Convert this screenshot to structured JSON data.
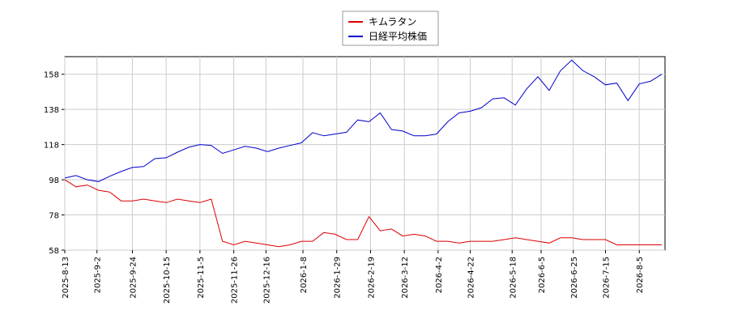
{
  "chart_data": {
    "type": "line",
    "x": [
      "2025-08-13",
      "2025-08-20",
      "2025-08-27",
      "2025-09-03",
      "2025-09-10",
      "2025-09-17",
      "2025-09-24",
      "2025-10-01",
      "2025-10-08",
      "2025-10-15",
      "2025-10-22",
      "2025-10-29",
      "2025-11-05",
      "2025-11-12",
      "2025-11-19",
      "2025-11-26",
      "2025-12-03",
      "2025-12-10",
      "2025-12-17",
      "2025-12-24",
      "2025-12-31",
      "2026-01-07",
      "2026-01-14",
      "2026-01-21",
      "2026-01-28",
      "2026-02-04",
      "2026-02-11",
      "2026-02-18",
      "2026-02-25",
      "2026-03-04",
      "2026-03-11",
      "2026-03-18",
      "2026-03-25",
      "2026-04-01",
      "2026-04-08",
      "2026-04-15",
      "2026-04-22",
      "2026-04-29",
      "2026-05-06",
      "2026-05-13",
      "2026-05-20",
      "2026-05-27",
      "2026-06-03",
      "2026-06-10",
      "2026-06-17",
      "2026-06-24",
      "2026-07-01",
      "2026-07-08",
      "2026-07-15",
      "2026-07-22",
      "2026-07-29",
      "2026-08-05",
      "2026-08-12",
      "2026-08-19"
    ],
    "series": [
      {
        "name": "キムラタン",
        "color": "#dd0000",
        "values": [
          98,
          94,
          95,
          92,
          91,
          86,
          86,
          87,
          86,
          85,
          87,
          86,
          85,
          87,
          63,
          61,
          63,
          62,
          61,
          60,
          61,
          63,
          63,
          68,
          67,
          64,
          64,
          77,
          69,
          70,
          66,
          67,
          66,
          63,
          63,
          62,
          63,
          63,
          63,
          64,
          65,
          64,
          63,
          62,
          65,
          65,
          64,
          64,
          64,
          61,
          61,
          61,
          61,
          61
        ]
      },
      {
        "name": "日経平均株価",
        "color": "#0000cc",
        "values": [
          99,
          100.4,
          98,
          97,
          100,
          102.7,
          105,
          105.5,
          110,
          110.5,
          113.7,
          116.5,
          118,
          117.5,
          113,
          115,
          117,
          116,
          114,
          116,
          117.5,
          119,
          124.8,
          123,
          124,
          125,
          132,
          131,
          136,
          126.6,
          125.7,
          123,
          123,
          124,
          131,
          136,
          137,
          139,
          144,
          144.6,
          140.5,
          149.7,
          156.6,
          148.8,
          160,
          166,
          160,
          156.6,
          152,
          153,
          143,
          152.5,
          154,
          158
        ]
      }
    ],
    "xlim": [
      "2025-08-13",
      "2026-08-21"
    ],
    "xticks": [
      {
        "value": "2025-08-13",
        "label": "2025-8-13"
      },
      {
        "value": "2025-09-02",
        "label": "2025-9-2"
      },
      {
        "value": "2025-09-24",
        "label": "2025-9-24"
      },
      {
        "value": "2025-10-15",
        "label": "2025-10-15"
      },
      {
        "value": "2025-11-05",
        "label": "2025-11-5"
      },
      {
        "value": "2025-11-26",
        "label": "2025-11-26"
      },
      {
        "value": "2025-12-16",
        "label": "2025-12-16"
      },
      {
        "value": "2026-01-08",
        "label": "2026-1-8"
      },
      {
        "value": "2026-01-29",
        "label": "2026-1-29"
      },
      {
        "value": "2026-02-19",
        "label": "2026-2-19"
      },
      {
        "value": "2026-03-12",
        "label": "2026-3-12"
      },
      {
        "value": "2026-04-02",
        "label": "2026-4-2"
      },
      {
        "value": "2026-04-22",
        "label": "2026-4-22"
      },
      {
        "value": "2026-05-18",
        "label": "2026-5-18"
      },
      {
        "value": "2026-06-05",
        "label": "2026-6-5"
      },
      {
        "value": "2026-06-25",
        "label": "2026-6-25"
      },
      {
        "value": "2026-07-15",
        "label": "2026-7-15"
      },
      {
        "value": "2026-08-05",
        "label": "2026-8-5"
      }
    ],
    "ylim": [
      58,
      168
    ],
    "yticks": [
      58,
      78,
      98,
      118,
      138,
      158
    ],
    "grid": true,
    "legend": "top"
  }
}
